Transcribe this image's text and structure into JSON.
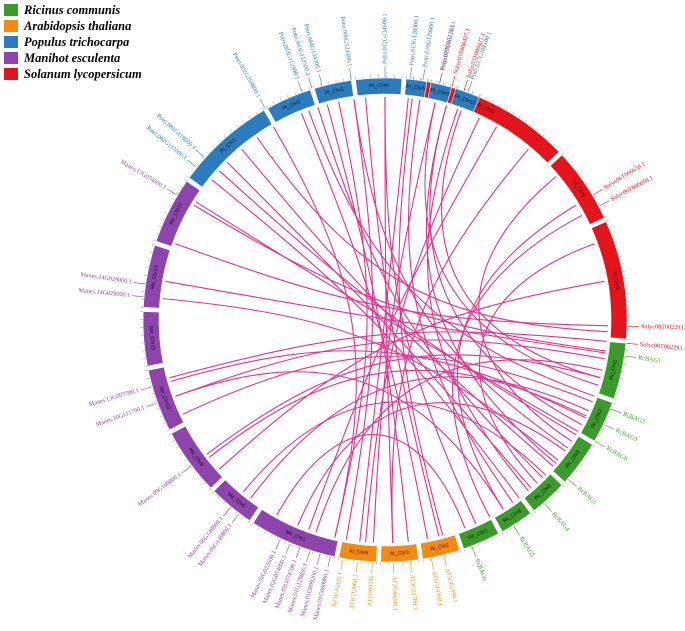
{
  "legend": [
    {
      "label": "Ricinus communis",
      "color": "#3a9a2a"
    },
    {
      "label": "Arabidopsis thaliana",
      "color": "#f58a12"
    },
    {
      "label": "Populus trichocarpa",
      "color": "#2b7bbf"
    },
    {
      "label": "Manihot esculenta",
      "color": "#8e44ad"
    },
    {
      "label": "Solanum lycopersicum",
      "color": "#e3141b"
    }
  ],
  "link_color": "#e0338d",
  "chromosomes": [
    {
      "name": "Sl_Chr1",
      "species": "Solanum lycopersicum",
      "start": -85.0,
      "end": -44.0
    },
    {
      "name": "Sl_Chr2",
      "species": "Solanum lycopersicum",
      "start": -43.0,
      "end": -25.0
    },
    {
      "name": "Sl_Chr3",
      "species": "Solanum lycopersicum",
      "start": -24.0,
      "end": 4.5
    },
    {
      "name": "Rc_Chr1",
      "species": "Ricinus communis",
      "start": 5.5,
      "end": 19.0
    },
    {
      "name": "Rc_Chr2",
      "species": "Ricinus communis",
      "start": 20.0,
      "end": 30.0
    },
    {
      "name": "Rc_Chr4",
      "species": "Ricinus communis",
      "start": 31.0,
      "end": 42.0
    },
    {
      "name": "Rc_Chr6",
      "species": "Ricinus communis",
      "start": 43.0,
      "end": 52.0
    },
    {
      "name": "Rc_Chr9",
      "species": "Ricinus communis",
      "start": 53.0,
      "end": 61.0
    },
    {
      "name": "Rc_Chr1",
      "species": "Ricinus communis",
      "start": 62.0,
      "end": 71.0
    },
    {
      "name": "At_Chr2",
      "species": "Arabidopsis thaliana",
      "start": 72.0,
      "end": 81.0
    },
    {
      "name": "At_Chr3",
      "species": "Arabidopsis thaliana",
      "start": 82.0,
      "end": 91.0
    },
    {
      "name": "At_Chr5",
      "species": "Arabidopsis thaliana",
      "start": 92.0,
      "end": 101.0
    },
    {
      "name": "Me_Chr1",
      "species": "Manihot esculenta",
      "start": 102.0,
      "end": 123.0
    },
    {
      "name": "Me_Chr6",
      "species": "Manihot esculenta",
      "start": 124.0,
      "end": 135.0
    },
    {
      "name": "Me_Chr9",
      "species": "Manihot esculenta",
      "start": 136.0,
      "end": 152.0
    },
    {
      "name": "Me_Chr10",
      "species": "Manihot esculenta",
      "start": 153.0,
      "end": 168.0
    },
    {
      "name": "Me_Chr13",
      "species": "Manihot esculenta",
      "start": 169.0,
      "end": 182.0
    },
    {
      "name": "Me_Chr14",
      "species": "Manihot esculenta",
      "start": 183.0,
      "end": 198.0
    },
    {
      "name": "Me_Chr17",
      "species": "Manihot esculenta",
      "start": 199.0,
      "end": 215.0
    },
    {
      "name": "Pt_Chr1",
      "species": "Populus trichocarpa",
      "start": 216.0,
      "end": 240.0
    },
    {
      "name": "Pt_Chr2",
      "species": "Populus trichocarpa",
      "start": 241.0,
      "end": 252.0
    },
    {
      "name": "Pt_Chr3",
      "species": "Populus trichocarpa",
      "start": 253.0,
      "end": 262.0
    },
    {
      "name": "Pt_Chr4",
      "species": "Populus trichocarpa",
      "start": 263.0,
      "end": 274.0
    },
    {
      "name": "Pt_Chr5",
      "species": "Populus trichocarpa",
      "start": 275.0,
      "end": 280.0
    },
    {
      "name": "Pt_Chr6",
      "species": "Populus trichocarpa",
      "start": 281.0,
      "end": 286.0
    },
    {
      "name": "Pt_Chr12",
      "species": "Populus trichocarpa",
      "start": 287.0,
      "end": 293.0
    }
  ],
  "genes": [
    {
      "label": "Solyc02T000221.1",
      "species": "Solanum lycopersicum",
      "angle": -77
    },
    {
      "label": "Solyc03T000427.1",
      "species": "Solanum lycopersicum",
      "angle": -74
    },
    {
      "label": "Solyc03T000427.1",
      "species": "Solanum lycopersicum",
      "angle": -71
    },
    {
      "label": "Solyc06T000658.1",
      "species": "Solanum lycopersicum",
      "angle": -31
    },
    {
      "label": "Solyc06T000658.1",
      "species": "Solanum lycopersicum",
      "angle": -28
    },
    {
      "label": "Solyc08T002293.1",
      "species": "Solanum lycopersicum",
      "angle": 1.5
    },
    {
      "label": "Solyc08T002293.1",
      "species": "Solanum lycopersicum",
      "angle": 5.5
    },
    {
      "label": "RcBAG1",
      "species": "Ricinus communis",
      "angle": 8.5
    },
    {
      "label": "RcBAG2",
      "species": "Ricinus communis",
      "angle": 21.5
    },
    {
      "label": "RcBAG9",
      "species": "Ricinus communis",
      "angle": 25.5
    },
    {
      "label": "RcBAG8",
      "species": "Ricinus communis",
      "angle": 30
    },
    {
      "label": "RcBAG3",
      "species": "Ricinus communis",
      "angle": 41
    },
    {
      "label": "RcBAG4",
      "species": "Ricinus communis",
      "angle": 49
    },
    {
      "label": "RcBAG5",
      "species": "Ricinus communis",
      "angle": 58
    },
    {
      "label": "RcBAG6",
      "species": "Ricinus communis",
      "angle": 69
    },
    {
      "label": "AT5G62390.1",
      "species": "Arabidopsis thaliana",
      "angle": 76
    },
    {
      "label": "AT5G14360.1",
      "species": "Arabidopsis thaliana",
      "angle": 79
    },
    {
      "label": "AT3G51780.1",
      "species": "Arabidopsis thaliana",
      "angle": 84
    },
    {
      "label": "AT2G46240.1",
      "species": "Arabidopsis thaliana",
      "angle": 88
    },
    {
      "label": "AT1G60745",
      "species": "Arabidopsis thaliana",
      "angle": 93
    },
    {
      "label": "AT1G12060.1",
      "species": "Arabidopsis thaliana",
      "angle": 96.5
    },
    {
      "label": "AT1G41020.1",
      "species": "Arabidopsis thaliana",
      "angle": 100
    },
    {
      "label": "Manes.01G080900.1",
      "species": "Manihot esculenta",
      "angle": 103
    },
    {
      "label": "Manes.01G099200.1",
      "species": "Manihot esculenta",
      "angle": 105.5
    },
    {
      "label": "Manes.01G129800.1",
      "species": "Manihot esculenta",
      "angle": 108
    },
    {
      "label": "Manes.02G074700.1",
      "species": "Manihot esculenta",
      "angle": 110.5
    },
    {
      "label": "Manes.02G074800.1",
      "species": "Manihot esculenta",
      "angle": 113
    },
    {
      "label": "Manes.02G022500.1",
      "species": "Manihot esculenta",
      "angle": 115.5
    },
    {
      "label": "Manes.06G148000.1",
      "species": "Manihot esculenta",
      "angle": 127
    },
    {
      "label": "Manes.06G148000.1",
      "species": "Manihot esculenta",
      "angle": 129.5
    },
    {
      "label": "Manes.09G100800.1",
      "species": "Manihot esculenta",
      "angle": 143
    },
    {
      "label": "Manes.10G111700.1",
      "species": "Manihot esculenta",
      "angle": 160
    },
    {
      "label": "Manes.13G007700.1",
      "species": "Manihot esculenta",
      "angle": 164
    },
    {
      "label": "Manes.14G029000.1",
      "species": "Manihot esculenta",
      "angle": 185.5
    },
    {
      "label": "Manes.14G029000.1",
      "species": "Manihot esculenta",
      "angle": 188.5
    },
    {
      "label": "Manes.17G074800.1",
      "species": "Manihot esculenta",
      "angle": 211
    },
    {
      "label": "Potri.001G111000.1",
      "species": "Populus trichocarpa",
      "angle": 219
    },
    {
      "label": "Potri.001G118000.1",
      "species": "Populus trichocarpa",
      "angle": 222
    },
    {
      "label": "Potri.002G160800.1",
      "species": "Populus trichocarpa",
      "angle": 240.5
    },
    {
      "label": "Potri.003G112300.1",
      "species": "Populus trichocarpa",
      "angle": 250
    },
    {
      "label": "Potri.003G112500.1",
      "species": "Populus trichocarpa",
      "angle": 252.5
    },
    {
      "label": "Potri.004G134300.1",
      "species": "Populus trichocarpa",
      "angle": 255
    },
    {
      "label": "Potri.006G124300.1",
      "species": "Populus trichocarpa",
      "angle": 262
    },
    {
      "label": "Potri.012G134600.1",
      "species": "Populus trichocarpa",
      "angle": 270
    },
    {
      "label": "Potri.015G128500.1",
      "species": "Populus trichocarpa",
      "angle": 276
    },
    {
      "label": "Potri.016G129800.1",
      "species": "Populus trichocarpa",
      "angle": 279
    },
    {
      "label": "Potri.016G132200.1",
      "species": "Populus trichocarpa",
      "angle": 283
    },
    {
      "label": "Potri.017G108100.1",
      "species": "Populus trichocarpa",
      "angle": 290
    }
  ],
  "links": [
    [
      -77,
      17
    ],
    [
      -74,
      28
    ],
    [
      -71,
      50
    ],
    [
      -31,
      58
    ],
    [
      -28,
      62
    ],
    [
      -83,
      75
    ],
    [
      -40,
      33
    ],
    [
      -20,
      47
    ],
    [
      1.5,
      200
    ],
    [
      5.5,
      165
    ],
    [
      -60,
      110
    ],
    [
      -10,
      138
    ],
    [
      8.5,
      190
    ],
    [
      21.5,
      155
    ],
    [
      25.5,
      142
    ],
    [
      30,
      212
    ],
    [
      41,
      230
    ],
    [
      49,
      225
    ],
    [
      58,
      160
    ],
    [
      69,
      119
    ],
    [
      76,
      265
    ],
    [
      79,
      248
    ],
    [
      84,
      255
    ],
    [
      88,
      270
    ],
    [
      93,
      283
    ],
    [
      96.5,
      276
    ],
    [
      100,
      262
    ],
    [
      103,
      240
    ],
    [
      108,
      13
    ],
    [
      113,
      36
    ],
    [
      127,
      24
    ],
    [
      129.5,
      44
    ],
    [
      143,
      15
    ],
    [
      160,
      10
    ],
    [
      164,
      26
    ],
    [
      185.5,
      39
    ],
    [
      211,
      8
    ],
    [
      219,
      53
    ],
    [
      222,
      31
    ],
    [
      250,
      20
    ],
    [
      252.5,
      45
    ],
    [
      258,
      103
    ],
    [
      262,
      35
    ],
    [
      270,
      66
    ],
    [
      279,
      55
    ],
    [
      286,
      40
    ],
    [
      290,
      15
    ],
    [
      235,
      3
    ],
    [
      -50,
      88
    ],
    [
      -65,
      95
    ]
  ]
}
